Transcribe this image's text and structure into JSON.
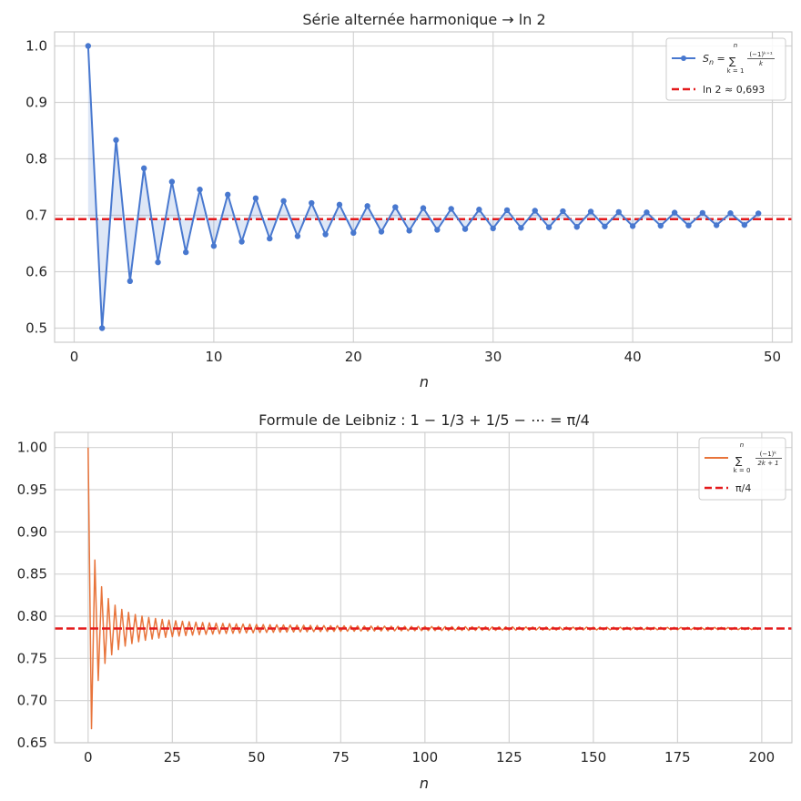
{
  "chart_data": [
    {
      "type": "line",
      "title": "Série alternée harmonique $\\to \\ln 2$",
      "title_display": "Série alternée harmonique  → ln 2",
      "xlabel": "n",
      "ylabel": "",
      "xlim": [
        -1.4,
        51.4
      ],
      "ylim": [
        0.475,
        1.025
      ],
      "xticks": [
        0,
        10,
        20,
        30,
        40,
        50
      ],
      "yticks": [
        0.5,
        0.6,
        0.7,
        0.8,
        0.9,
        1.0
      ],
      "ytick_decimals": 1,
      "grid": true,
      "legend_position": "top-right",
      "series": [
        {
          "name": "$S_n = \\sum_{k=1}^{n} \\frac{(-1)^{k+1}}{k}$",
          "color": "#4878cf",
          "marker": "circle",
          "fill_to_limit": true,
          "formula": "alternating-harmonic",
          "n_start": 1,
          "n_end": 49
        },
        {
          "name": "$\\ln 2 \\approx 0{,}693$",
          "color": "#e41a1c",
          "style": "dashed",
          "value": 0.6931
        }
      ],
      "legend": {
        "series_label_prefix": "S",
        "series_label_sub": "n",
        "series_label_eq": " = ",
        "sum_sign": "∑",
        "sum_upper": "n",
        "sum_lower": "k = 1",
        "frac_num": "(−1)ᵏ⁺¹",
        "frac_den": "k",
        "ref_label": "ln 2 ≈ 0,693"
      }
    },
    {
      "type": "line",
      "title": "Formule de Leibniz : $1 - 1/3 + 1/5 - \\cdots = \\pi/4$",
      "title_display": "Formule de Leibniz : 1 − 1/3 + 1/5 − ⋯ = π/4",
      "xlabel": "n",
      "ylabel": "",
      "xlim": [
        -9.95,
        208.95
      ],
      "ylim": [
        0.65,
        1.018
      ],
      "xticks": [
        0,
        25,
        50,
        75,
        100,
        125,
        150,
        175,
        200
      ],
      "yticks": [
        0.65,
        0.7,
        0.75,
        0.8,
        0.85,
        0.9,
        0.95,
        1.0
      ],
      "ytick_decimals": 2,
      "grid": true,
      "legend_position": "top-right",
      "series": [
        {
          "name": "$\\sum_{k=0}^{n} \\frac{(-1)^k}{2k+1}$",
          "color": "#e8743b",
          "marker": "none",
          "formula": "leibniz",
          "n_start": 0,
          "n_end": 199
        },
        {
          "name": "$\\pi/4$",
          "color": "#e41a1c",
          "style": "dashed",
          "value": 0.7854
        }
      ],
      "legend": {
        "sum_sign": "∑",
        "sum_upper": "n",
        "sum_lower": "k = 0",
        "frac_num": "(−1)ᵏ",
        "frac_den": "2k + 1",
        "ref_label": "π/4"
      }
    }
  ]
}
